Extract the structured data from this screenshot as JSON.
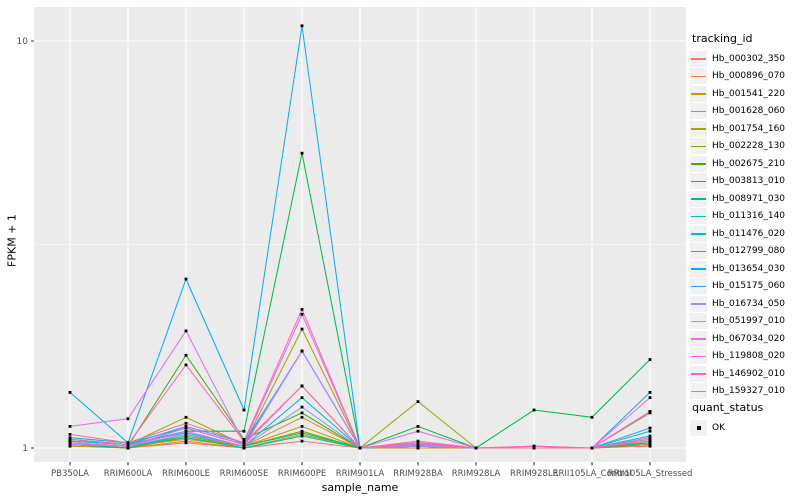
{
  "figure": {
    "background": "#FFFFFF",
    "panel_bg": "#EBEBEB",
    "grid_color": "#FFFFFF",
    "axis_text_color": "#4D4D4D",
    "point_color": "#000000"
  },
  "legend": {
    "tracking_title": "tracking_id",
    "quant_title": "quant_status",
    "quant_label": "OK",
    "quant_shape": "black-square-icon"
  },
  "chart_data": {
    "type": "line",
    "title": "",
    "xlabel": "sample_name",
    "ylabel": "FPKM + 1",
    "yscale": "log10",
    "yticks": [
      1,
      10
    ],
    "ylim": [
      0.92,
      12.1
    ],
    "grid": true,
    "legend_position": "right",
    "point_shape": "filled-square",
    "categories": [
      "PB350LA",
      "RRIM600LA",
      "RRIM600LE",
      "RRIM600SE",
      "RRIM600PE",
      "RRIM901LA",
      "RRIM928BA",
      "RRIM928LA",
      "RRIM928LE",
      "RRII105LA_Control",
      "RRII105LA_Stressed"
    ],
    "series": [
      {
        "name": "Hb_000302_350",
        "color": "#F8766D",
        "values": [
          1.02,
          1.0,
          1.03,
          1.0,
          1.04,
          1.0,
          1.0,
          1.0,
          1.0,
          1.0,
          1.01
        ]
      },
      {
        "name": "Hb_000896_070",
        "color": "#EA8331",
        "values": [
          1.03,
          1.01,
          1.05,
          1.01,
          1.19,
          1.0,
          1.01,
          1.0,
          1.0,
          1.0,
          1.02
        ]
      },
      {
        "name": "Hb_001541_220",
        "color": "#D89000",
        "values": [
          1.02,
          1.0,
          1.04,
          1.0,
          1.08,
          1.0,
          1.0,
          1.0,
          1.0,
          1.0,
          1.02
        ]
      },
      {
        "name": "Hb_001628_060",
        "color": "#C09B00",
        "values": [
          1.01,
          1.0,
          1.06,
          1.01,
          1.13,
          1.0,
          1.02,
          1.0,
          1.0,
          1.0,
          1.03
        ]
      },
      {
        "name": "Hb_001754_160",
        "color": "#A3A500",
        "values": [
          1.04,
          1.02,
          1.19,
          1.02,
          1.96,
          1.0,
          1.3,
          1.0,
          1.01,
          1.0,
          1.22
        ]
      },
      {
        "name": "Hb_002228_130",
        "color": "#7CAE00",
        "values": [
          1.02,
          1.0,
          1.07,
          1.01,
          1.1,
          1.0,
          1.01,
          1.0,
          1.0,
          1.0,
          1.02
        ]
      },
      {
        "name": "Hb_002675_210",
        "color": "#39B600",
        "values": [
          1.03,
          1.01,
          1.69,
          1.05,
          1.22,
          1.0,
          1.03,
          1.0,
          1.0,
          1.0,
          1.05
        ]
      },
      {
        "name": "Hb_003813_010",
        "color": "#00BB4E",
        "values": [
          1.05,
          1.02,
          1.1,
          1.1,
          5.3,
          1.0,
          1.13,
          1.0,
          1.24,
          1.19,
          1.65
        ]
      },
      {
        "name": "Hb_008971_030",
        "color": "#00BF7D",
        "values": [
          1.02,
          1.0,
          1.08,
          1.01,
          1.09,
          1.0,
          1.02,
          1.0,
          1.0,
          1.0,
          1.03
        ]
      },
      {
        "name": "Hb_011316_140",
        "color": "#00C1A3",
        "values": [
          1.02,
          1.01,
          1.06,
          1.0,
          1.07,
          1.0,
          1.01,
          1.0,
          1.0,
          1.0,
          1.04
        ]
      },
      {
        "name": "Hb_011476_020",
        "color": "#00BFC4",
        "values": [
          1.06,
          1.03,
          1.12,
          1.02,
          1.73,
          1.0,
          1.02,
          1.0,
          1.0,
          1.0,
          1.1
        ]
      },
      {
        "name": "Hb_012799_080",
        "color": "#00BAE0",
        "values": [
          1.04,
          1.02,
          1.09,
          1.01,
          1.33,
          1.0,
          1.01,
          1.0,
          1.0,
          1.0,
          1.07
        ]
      },
      {
        "name": "Hb_013654_030",
        "color": "#00B0F6",
        "values": [
          1.37,
          1.03,
          2.6,
          1.24,
          10.9,
          1.0,
          1.03,
          1.0,
          1.0,
          1.0,
          1.37
        ]
      },
      {
        "name": "Hb_015175_060",
        "color": "#35A2FF",
        "values": [
          1.05,
          1.02,
          1.13,
          1.03,
          1.73,
          1.0,
          1.02,
          1.0,
          1.0,
          1.0,
          1.12
        ]
      },
      {
        "name": "Hb_016734_050",
        "color": "#9590FF",
        "values": [
          1.03,
          1.01,
          1.08,
          1.01,
          1.26,
          1.0,
          1.01,
          1.0,
          1.0,
          1.0,
          1.05
        ]
      },
      {
        "name": "Hb_051997_010",
        "color": "#C77CFF",
        "values": [
          1.02,
          1.01,
          1.1,
          1.01,
          1.73,
          1.0,
          1.02,
          1.0,
          1.0,
          1.0,
          1.23
        ]
      },
      {
        "name": "Hb_067034_020",
        "color": "#E76BF3",
        "values": [
          1.13,
          1.18,
          1.94,
          1.03,
          2.13,
          1.0,
          1.1,
          1.0,
          1.0,
          1.0,
          1.23
        ]
      },
      {
        "name": "Hb_119808_020",
        "color": "#FA62DB",
        "values": [
          1.03,
          1.01,
          1.12,
          1.02,
          1.42,
          1.0,
          1.02,
          1.0,
          1.0,
          1.0,
          1.33
        ]
      },
      {
        "name": "Hb_146902_010",
        "color": "#FF62BC",
        "values": [
          1.05,
          1.02,
          1.6,
          1.04,
          2.19,
          1.0,
          1.03,
          1.0,
          1.01,
          1.0,
          1.06
        ]
      },
      {
        "name": "Hb_159327_010",
        "color": "#FF6A98",
        "values": [
          1.08,
          1.03,
          1.15,
          1.03,
          1.42,
          1.0,
          1.04,
          1.0,
          1.0,
          1.0,
          1.04
        ]
      }
    ]
  }
}
